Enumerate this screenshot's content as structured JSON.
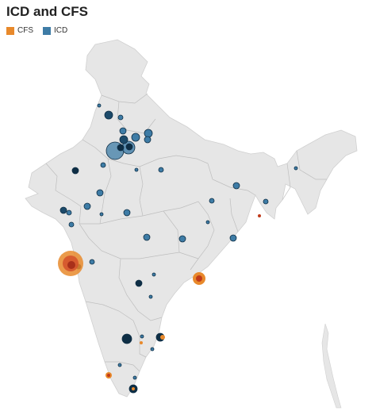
{
  "title": "ICD and CFS",
  "legend": [
    {
      "label": "CFS",
      "color": "#E8892B"
    },
    {
      "label": "ICD",
      "color": "#3E7CA6"
    }
  ],
  "colors": {
    "land": "#E6E6E6",
    "border": "#B8B8B8",
    "cfs": "#E8892B",
    "cfs_dark": "#C03A1A",
    "icd": "#3E7CA6",
    "icd_dark": "#0E2E45"
  }
}
